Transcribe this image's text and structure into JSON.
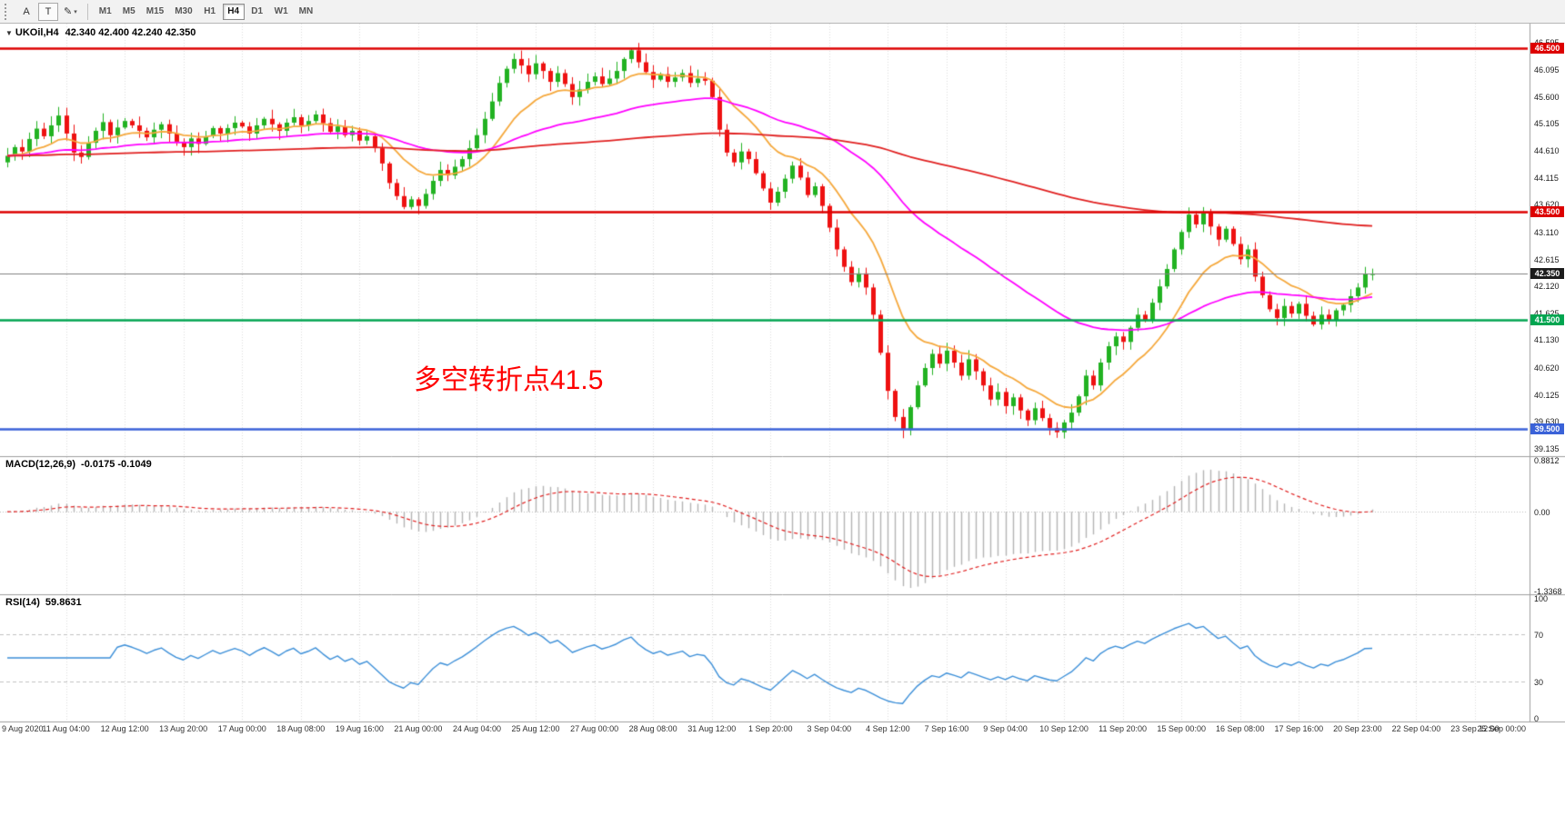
{
  "toolbar": {
    "buttons": [
      {
        "label": "A"
      },
      {
        "label": "T"
      },
      {
        "label": "✎",
        "caret": "▾"
      }
    ],
    "timeframes": [
      "M1",
      "M5",
      "M15",
      "M30",
      "H1",
      "H4",
      "D1",
      "W1",
      "MN"
    ],
    "active_timeframe": "H4"
  },
  "chart_header": {
    "dropdown_icon": "▼",
    "symbol": "UKOil,H4",
    "ohlc": "42.340 42.400 42.240 42.350"
  },
  "chart_data": {
    "type": "candlestick",
    "symbol": "UKOil",
    "timeframe": "H4",
    "price_range": [
      39.0,
      46.95
    ],
    "first_open": 44.4,
    "closes": [
      44.52,
      44.68,
      44.6,
      44.83,
      45.02,
      44.88,
      45.08,
      45.26,
      44.93,
      44.58,
      44.5,
      44.76,
      44.98,
      45.14,
      44.9,
      45.04,
      45.16,
      45.08,
      44.98,
      44.86,
      45.0,
      45.1,
      44.93,
      44.78,
      44.68,
      44.84,
      44.74,
      44.88,
      45.03,
      44.93,
      45.03,
      45.13,
      45.06,
      44.93,
      45.08,
      45.2,
      45.1,
      44.98,
      45.13,
      45.23,
      45.08,
      45.16,
      45.28,
      45.12,
      44.96,
      45.06,
      44.9,
      44.98,
      44.8,
      44.88,
      44.66,
      44.38,
      44.02,
      43.78,
      43.58,
      43.72,
      43.6,
      43.82,
      44.06,
      44.26,
      44.16,
      44.32,
      44.46,
      44.66,
      44.9,
      45.2,
      45.52,
      45.86,
      46.12,
      46.3,
      46.18,
      46.02,
      46.22,
      46.08,
      45.88,
      46.04,
      45.84,
      45.6,
      45.74,
      45.88,
      45.98,
      45.84,
      45.94,
      46.08,
      46.3,
      46.46,
      46.24,
      46.06,
      45.92,
      46.02,
      45.88,
      45.96,
      46.04,
      45.86,
      45.94,
      45.9,
      45.6,
      45.0,
      44.58,
      44.4,
      44.6,
      44.46,
      44.2,
      43.92,
      43.66,
      43.86,
      44.1,
      44.34,
      44.12,
      43.8,
      43.96,
      43.6,
      43.2,
      42.8,
      42.48,
      42.2,
      42.36,
      42.1,
      41.6,
      40.9,
      40.2,
      39.72,
      39.48,
      39.9,
      40.3,
      40.62,
      40.88,
      40.7,
      40.94,
      40.72,
      40.48,
      40.78,
      40.56,
      40.3,
      40.04,
      40.18,
      39.92,
      40.08,
      39.84,
      39.66,
      39.88,
      39.7,
      39.52,
      39.44,
      39.62,
      39.8,
      40.1,
      40.48,
      40.3,
      40.72,
      41.02,
      41.2,
      41.1,
      41.36,
      41.6,
      41.5,
      41.82,
      42.12,
      42.44,
      42.8,
      43.12,
      43.44,
      43.26,
      43.46,
      43.22,
      42.98,
      43.18,
      42.9,
      42.62,
      42.8,
      42.3,
      41.96,
      41.7,
      41.54,
      41.76,
      41.62,
      41.8,
      41.58,
      41.42,
      41.6,
      41.5,
      41.68,
      41.78,
      41.94,
      42.1,
      42.34,
      42.35
    ],
    "candle_colors": {
      "up": "#22b222",
      "down": "#ee1111"
    },
    "y_axis_ticks": [
      "46.595",
      "46.095",
      "45.600",
      "45.105",
      "44.610",
      "44.115",
      "43.620",
      "43.110",
      "42.615",
      "42.120",
      "41.625",
      "41.130",
      "40.620",
      "40.125",
      "39.630",
      "39.135"
    ],
    "x_axis_labels": [
      "9 Aug 2020",
      "11 Aug 04:00",
      "12 Aug 12:00",
      "13 Aug 20:00",
      "17 Aug 00:00",
      "18 Aug 08:00",
      "19 Aug 16:00",
      "21 Aug 00:00",
      "24 Aug 04:00",
      "25 Aug 12:00",
      "27 Aug 00:00",
      "28 Aug 08:00",
      "31 Aug 12:00",
      "1 Sep 20:00",
      "3 Sep 04:00",
      "4 Sep 12:00",
      "7 Sep 16:00",
      "9 Sep 04:00",
      "10 Sep 12:00",
      "11 Sep 20:00",
      "15 Sep 00:00",
      "16 Sep 08:00",
      "17 Sep 16:00",
      "20 Sep 23:00",
      "22 Sep 04:00",
      "23 Sep 12:00",
      "25 Sep 00:00"
    ],
    "hlines": [
      {
        "price": 46.5,
        "label": "46.500",
        "color": "#dd0000",
        "width": 2.5
      },
      {
        "price": 43.5,
        "label": "43.500",
        "color": "#dd0000",
        "width": 2.5
      },
      {
        "price": 42.35,
        "label": "42.350",
        "color": "#808080",
        "width": 1,
        "tag_bg": "#1c1c1c"
      },
      {
        "price": 41.5,
        "label": "41.500",
        "color": "#00a550",
        "width": 2.5
      },
      {
        "price": 39.5,
        "label": "39.500",
        "color": "#3a62d8",
        "width": 2.5
      }
    ],
    "annotation": {
      "text": "多空转折点41.5",
      "color": "#ff0000"
    },
    "moving_averages": [
      {
        "period": 13,
        "color": "#f5a83c"
      },
      {
        "period": 50,
        "color": "#ff00ff"
      },
      {
        "period": 233,
        "color": "#e02020"
      }
    ],
    "macd": {
      "label": "MACD(12,26,9)",
      "values": "-0.0175 -0.1049",
      "fast": 12,
      "slow": 26,
      "signal": 9,
      "range": [
        -1.3368,
        0.8812
      ],
      "ticks": [
        {
          "v": 0.8812,
          "label": "0.8812"
        },
        {
          "v": 0,
          "label": "0.00"
        },
        {
          "v": -1.3368,
          "label": "-1.3368"
        }
      ],
      "hist_color": "#b4b4b4",
      "signal_color": "#e02020"
    },
    "rsi": {
      "label": "RSI(14)",
      "value": "59.8631",
      "period": 14,
      "range": [
        0,
        100
      ],
      "levels": [
        70,
        30
      ],
      "ticks": [
        {
          "v": 100,
          "label": "100"
        },
        {
          "v": 70,
          "label": "70"
        },
        {
          "v": 30,
          "label": "30"
        },
        {
          "v": 0,
          "label": "0"
        }
      ],
      "color": "#3c8fd8"
    }
  }
}
